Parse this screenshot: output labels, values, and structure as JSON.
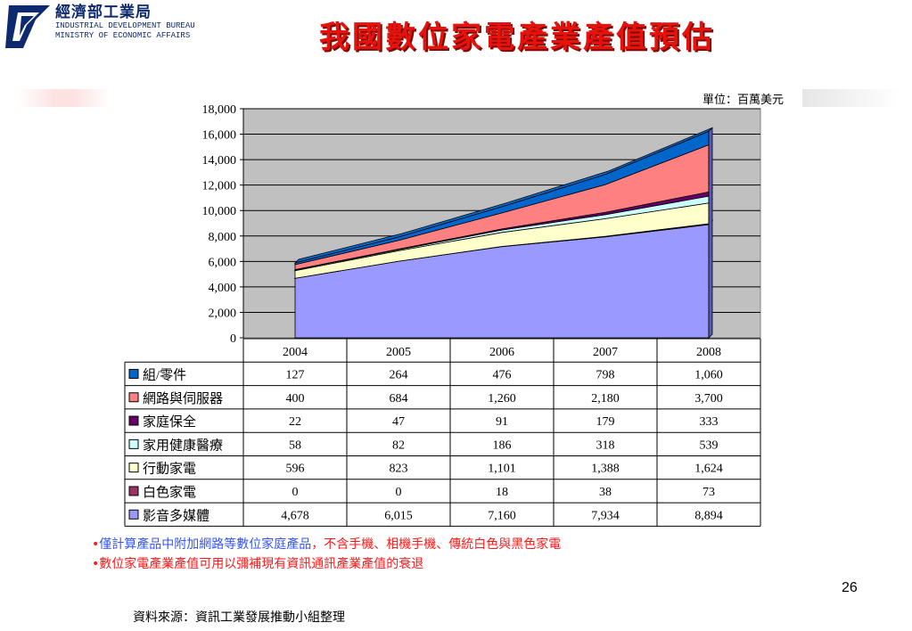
{
  "header": {
    "org_name_cn": "經濟部工業局",
    "org_name_en_1": "INDUSTRIAL DEVELOPMENT BUREAU",
    "org_name_en_2": "MINISTRY OF ECONOMIC AFFAIRS",
    "title": "我國數位家電產業產值預估"
  },
  "unit_label": "單位：百萬美元",
  "chart_data": {
    "type": "area",
    "stacked": true,
    "ylim": [
      0,
      18000
    ],
    "yticks": [
      "0",
      "2,000",
      "4,000",
      "6,000",
      "8,000",
      "10,000",
      "12,000",
      "14,000",
      "16,000",
      "18,000"
    ],
    "ytick_values": [
      0,
      2000,
      4000,
      6000,
      8000,
      10000,
      12000,
      14000,
      16000,
      18000
    ],
    "grid": true,
    "legend_placement": "data-table-left",
    "categories": [
      "2004",
      "2005",
      "2006",
      "2007",
      "2008"
    ],
    "series": [
      {
        "name": "影音多媒體",
        "color": "#9999ff",
        "values": [
          4678,
          6015,
          7160,
          7934,
          8894
        ],
        "labels": [
          "4,678",
          "6,015",
          "7,160",
          "7,934",
          "8,894"
        ]
      },
      {
        "name": "白色家電",
        "color": "#993366",
        "values": [
          0,
          0,
          18,
          38,
          73
        ],
        "labels": [
          "0",
          "0",
          "18",
          "38",
          "73"
        ]
      },
      {
        "name": "行動家電",
        "color": "#ffffcc",
        "values": [
          596,
          823,
          1101,
          1388,
          1624
        ],
        "labels": [
          "596",
          "823",
          "1,101",
          "1,388",
          "1,624"
        ]
      },
      {
        "name": "家用健康醫療",
        "color": "#ccffff",
        "values": [
          58,
          82,
          186,
          318,
          539
        ],
        "labels": [
          "58",
          "82",
          "186",
          "318",
          "539"
        ]
      },
      {
        "name": "家庭保全",
        "color": "#660066",
        "values": [
          22,
          47,
          91,
          179,
          333
        ],
        "labels": [
          "22",
          "47",
          "91",
          "179",
          "333"
        ]
      },
      {
        "name": "網路與伺服器",
        "color": "#ff8080",
        "values": [
          400,
          684,
          1260,
          2180,
          3700
        ],
        "labels": [
          "400",
          "684",
          "1,260",
          "2,180",
          "3,700"
        ]
      },
      {
        "name": "組/零件",
        "color": "#0066cc",
        "values": [
          127,
          264,
          476,
          798,
          1060
        ],
        "labels": [
          "127",
          "264",
          "476",
          "798",
          "1,060"
        ]
      }
    ]
  },
  "notes": {
    "note1_prefix": "•",
    "note1_part1": "僅計算產品中附加網路等數位家庭產品",
    "note1_part2": "，不含手機、相機手機、傳統白色與黑色家電",
    "note2": "•數位家電產業產值可用以彌補現有資訊通訊產業產值的衰退"
  },
  "page_number": "26",
  "source": "資料來源：資訊工業發展推動小組整理"
}
